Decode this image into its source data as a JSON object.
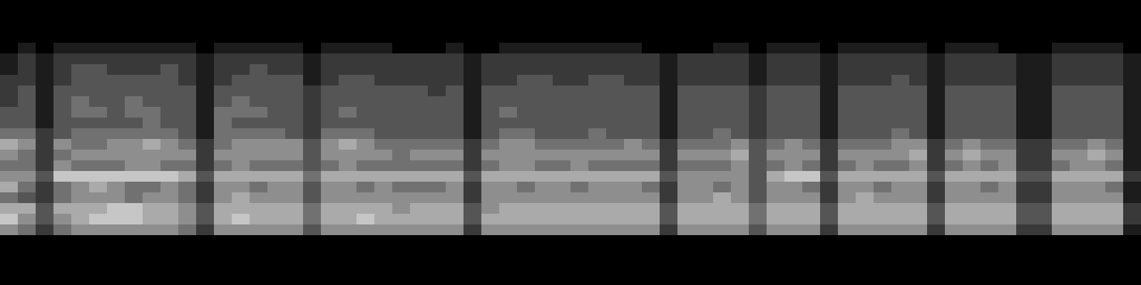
{
  "chart_data": {
    "type": "heatmap",
    "tick_labels": false,
    "zlim": [
      0,
      9
    ],
    "cells": [
      [
        0,
        1,
        0,
        1,
        1,
        1,
        1,
        1,
        1,
        1,
        1,
        0,
        1,
        1,
        1,
        1,
        1,
        0,
        1,
        1,
        1,
        1,
        0,
        0,
        0,
        1,
        0,
        0,
        1,
        1,
        1,
        1,
        1,
        1,
        1,
        1,
        0,
        0,
        0,
        0,
        1,
        1,
        0,
        1,
        1,
        1,
        0,
        1,
        1,
        1,
        1,
        1,
        0,
        1,
        1,
        1,
        0,
        0,
        0,
        1,
        1,
        1,
        1,
        0
      ],
      [
        1,
        2,
        1,
        2,
        2,
        2,
        2,
        2,
        2,
        2,
        2,
        1,
        2,
        2,
        2,
        2,
        2,
        1,
        2,
        2,
        2,
        2,
        2,
        2,
        2,
        2,
        1,
        2,
        2,
        2,
        2,
        2,
        2,
        2,
        2,
        2,
        2,
        1,
        2,
        2,
        2,
        2,
        1,
        2,
        2,
        2,
        1,
        2,
        2,
        2,
        2,
        2,
        1,
        2,
        2,
        2,
        2,
        1,
        1,
        2,
        2,
        2,
        2,
        1
      ],
      [
        1,
        2,
        1,
        2,
        3,
        3,
        2,
        2,
        2,
        3,
        2,
        1,
        2,
        2,
        3,
        2,
        2,
        1,
        2,
        2,
        2,
        2,
        2,
        2,
        2,
        2,
        1,
        2,
        2,
        2,
        2,
        2,
        2,
        2,
        2,
        2,
        2,
        1,
        2,
        2,
        2,
        2,
        1,
        2,
        2,
        2,
        1,
        2,
        2,
        2,
        2,
        2,
        1,
        2,
        2,
        2,
        2,
        1,
        1,
        2,
        2,
        2,
        2,
        1
      ],
      [
        2,
        2,
        1,
        2,
        3,
        3,
        3,
        3,
        3,
        3,
        2,
        1,
        2,
        3,
        3,
        3,
        3,
        1,
        2,
        3,
        3,
        2,
        2,
        2,
        2,
        2,
        1,
        2,
        2,
        3,
        3,
        2,
        2,
        3,
        3,
        2,
        2,
        1,
        2,
        2,
        2,
        2,
        1,
        2,
        2,
        2,
        1,
        2,
        2,
        2,
        3,
        2,
        1,
        2,
        2,
        2,
        2,
        1,
        1,
        2,
        2,
        2,
        2,
        1
      ],
      [
        2,
        3,
        1,
        3,
        3,
        3,
        3,
        3,
        3,
        3,
        3,
        1,
        3,
        3,
        3,
        3,
        3,
        2,
        3,
        3,
        3,
        3,
        3,
        3,
        2,
        3,
        1,
        3,
        3,
        3,
        3,
        3,
        3,
        3,
        3,
        3,
        3,
        1,
        3,
        3,
        3,
        3,
        2,
        3,
        3,
        3,
        1,
        3,
        3,
        3,
        3,
        3,
        1,
        3,
        3,
        3,
        3,
        1,
        1,
        3,
        3,
        3,
        3,
        1
      ],
      [
        2,
        3,
        1,
        3,
        4,
        3,
        3,
        4,
        3,
        3,
        3,
        1,
        3,
        4,
        3,
        3,
        3,
        2,
        3,
        3,
        3,
        3,
        3,
        3,
        3,
        3,
        1,
        3,
        3,
        3,
        3,
        3,
        3,
        3,
        3,
        3,
        3,
        1,
        3,
        3,
        3,
        3,
        2,
        3,
        3,
        3,
        1,
        3,
        3,
        3,
        3,
        3,
        1,
        3,
        3,
        3,
        3,
        1,
        1,
        3,
        3,
        3,
        3,
        1
      ],
      [
        3,
        3,
        1,
        3,
        4,
        4,
        3,
        4,
        4,
        3,
        3,
        1,
        4,
        4,
        4,
        3,
        3,
        2,
        3,
        4,
        3,
        3,
        3,
        3,
        3,
        3,
        1,
        3,
        4,
        3,
        3,
        3,
        3,
        3,
        3,
        3,
        3,
        1,
        3,
        3,
        3,
        3,
        2,
        3,
        3,
        3,
        1,
        3,
        3,
        3,
        3,
        3,
        1,
        3,
        3,
        3,
        3,
        1,
        1,
        3,
        3,
        3,
        3,
        1
      ],
      [
        3,
        3,
        1,
        3,
        3,
        3,
        3,
        3,
        4,
        3,
        3,
        1,
        4,
        3,
        3,
        3,
        3,
        2,
        3,
        3,
        3,
        3,
        3,
        3,
        3,
        3,
        1,
        3,
        3,
        3,
        3,
        3,
        3,
        3,
        3,
        3,
        3,
        1,
        3,
        3,
        3,
        3,
        2,
        3,
        3,
        3,
        1,
        3,
        3,
        3,
        3,
        3,
        1,
        3,
        3,
        3,
        3,
        1,
        1,
        3,
        3,
        3,
        3,
        1
      ],
      [
        4,
        4,
        2,
        3,
        4,
        4,
        4,
        4,
        4,
        4,
        3,
        1,
        4,
        4,
        4,
        4,
        3,
        2,
        4,
        4,
        4,
        3,
        3,
        3,
        3,
        3,
        1,
        3,
        4,
        4,
        3,
        3,
        3,
        4,
        3,
        3,
        3,
        1,
        3,
        3,
        4,
        3,
        2,
        3,
        3,
        3,
        1,
        3,
        3,
        3,
        4,
        3,
        1,
        3,
        3,
        3,
        3,
        1,
        1,
        3,
        3,
        3,
        3,
        1
      ],
      [
        6,
        5,
        2,
        5,
        4,
        4,
        5,
        5,
        6,
        5,
        4,
        2,
        4,
        5,
        5,
        5,
        5,
        3,
        5,
        6,
        5,
        4,
        4,
        4,
        4,
        4,
        2,
        4,
        5,
        5,
        4,
        4,
        4,
        4,
        4,
        5,
        4,
        2,
        4,
        4,
        4,
        5,
        3,
        4,
        5,
        4,
        2,
        4,
        4,
        4,
        5,
        5,
        2,
        4,
        5,
        4,
        4,
        2,
        2,
        4,
        4,
        5,
        4,
        1
      ],
      [
        5,
        4,
        2,
        4,
        5,
        5,
        5,
        5,
        5,
        5,
        5,
        2,
        5,
        5,
        5,
        5,
        5,
        3,
        5,
        5,
        5,
        5,
        4,
        5,
        5,
        5,
        2,
        5,
        5,
        5,
        5,
        5,
        5,
        5,
        5,
        5,
        5,
        2,
        5,
        5,
        5,
        6,
        3,
        5,
        5,
        5,
        2,
        5,
        5,
        5,
        5,
        6,
        2,
        5,
        6,
        5,
        5,
        2,
        2,
        5,
        5,
        6,
        5,
        1
      ],
      [
        4,
        4,
        2,
        5,
        4,
        4,
        4,
        5,
        5,
        4,
        4,
        2,
        4,
        5,
        4,
        4,
        4,
        3,
        4,
        5,
        4,
        4,
        4,
        4,
        4,
        4,
        2,
        4,
        5,
        5,
        4,
        4,
        5,
        4,
        4,
        4,
        4,
        2,
        4,
        4,
        4,
        5,
        3,
        4,
        5,
        4,
        2,
        4,
        5,
        4,
        4,
        5,
        2,
        4,
        5,
        4,
        5,
        2,
        2,
        4,
        5,
        5,
        4,
        1
      ],
      [
        5,
        5,
        3,
        7,
        7,
        7,
        7,
        7,
        7,
        7,
        6,
        3,
        6,
        6,
        6,
        6,
        6,
        4,
        6,
        6,
        6,
        6,
        6,
        6,
        6,
        6,
        3,
        6,
        6,
        6,
        6,
        6,
        6,
        6,
        6,
        6,
        6,
        3,
        5,
        5,
        5,
        5,
        3,
        6,
        7,
        7,
        3,
        6,
        6,
        6,
        6,
        6,
        3,
        6,
        6,
        6,
        6,
        3,
        3,
        6,
        6,
        6,
        6,
        2
      ],
      [
        6,
        4,
        2,
        4,
        5,
        6,
        5,
        4,
        4,
        5,
        4,
        2,
        5,
        5,
        4,
        5,
        5,
        3,
        5,
        5,
        4,
        5,
        4,
        4,
        4,
        5,
        2,
        5,
        5,
        4,
        5,
        5,
        4,
        5,
        5,
        5,
        4,
        2,
        5,
        5,
        4,
        5,
        3,
        5,
        5,
        4,
        2,
        5,
        5,
        4,
        5,
        5,
        2,
        5,
        5,
        4,
        5,
        2,
        2,
        5,
        5,
        5,
        4,
        1
      ],
      [
        4,
        3,
        2,
        4,
        5,
        5,
        5,
        4,
        5,
        5,
        4,
        2,
        5,
        6,
        5,
        5,
        5,
        3,
        5,
        5,
        5,
        5,
        5,
        5,
        5,
        5,
        2,
        5,
        5,
        5,
        5,
        5,
        5,
        5,
        5,
        5,
        5,
        2,
        5,
        5,
        6,
        5,
        3,
        5,
        5,
        5,
        2,
        5,
        6,
        5,
        5,
        5,
        2,
        5,
        5,
        5,
        5,
        2,
        2,
        5,
        5,
        5,
        5,
        1
      ],
      [
        6,
        6,
        3,
        6,
        6,
        6,
        7,
        7,
        6,
        6,
        5,
        3,
        6,
        6,
        6,
        6,
        6,
        4,
        6,
        6,
        6,
        6,
        5,
        6,
        6,
        6,
        3,
        5,
        6,
        6,
        6,
        6,
        6,
        6,
        6,
        6,
        6,
        3,
        6,
        6,
        6,
        6,
        4,
        6,
        6,
        6,
        3,
        6,
        6,
        6,
        6,
        6,
        3,
        6,
        6,
        6,
        6,
        3,
        3,
        6,
        6,
        6,
        6,
        2
      ],
      [
        7,
        5,
        3,
        5,
        6,
        7,
        7,
        7,
        6,
        6,
        5,
        3,
        6,
        7,
        6,
        6,
        6,
        4,
        6,
        6,
        7,
        6,
        6,
        6,
        6,
        6,
        3,
        6,
        6,
        6,
        6,
        6,
        6,
        6,
        6,
        6,
        6,
        3,
        6,
        6,
        6,
        6,
        4,
        6,
        6,
        6,
        3,
        6,
        6,
        6,
        6,
        6,
        3,
        6,
        6,
        6,
        6,
        3,
        3,
        6,
        6,
        6,
        6,
        2
      ],
      [
        5,
        4,
        2,
        4,
        5,
        5,
        5,
        5,
        5,
        5,
        4,
        2,
        5,
        5,
        5,
        5,
        5,
        3,
        5,
        5,
        5,
        5,
        5,
        5,
        5,
        5,
        2,
        5,
        5,
        5,
        5,
        5,
        5,
        5,
        5,
        5,
        5,
        2,
        5,
        5,
        5,
        5,
        3,
        5,
        5,
        5,
        2,
        5,
        5,
        5,
        5,
        5,
        2,
        5,
        5,
        5,
        5,
        2,
        2,
        5,
        5,
        5,
        5,
        1
      ]
    ]
  }
}
